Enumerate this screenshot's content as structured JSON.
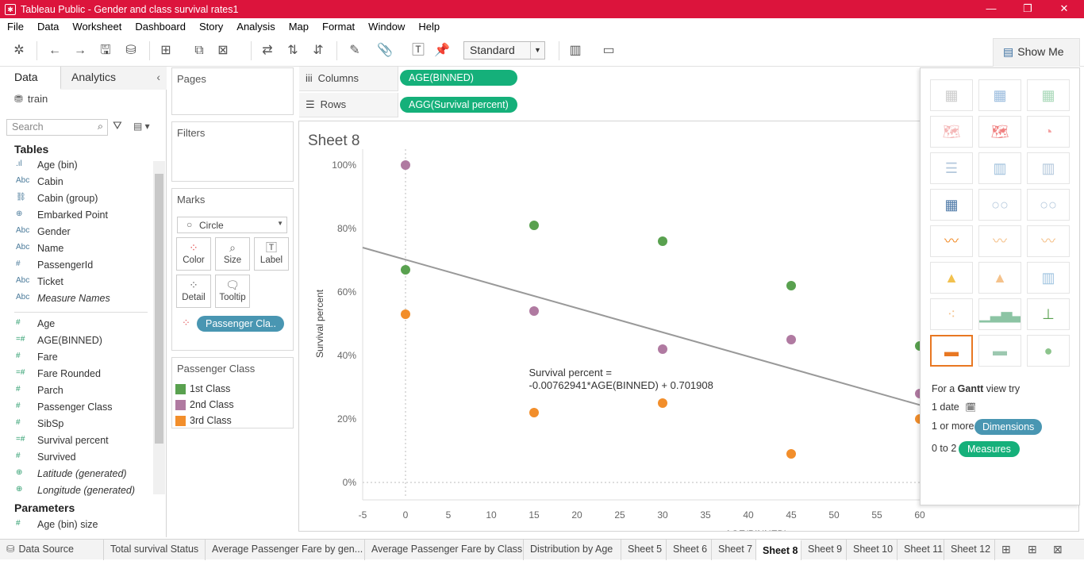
{
  "window": {
    "title": "Tableau Public - Gender and class survival rates1",
    "minimize": "—",
    "restore": "❐",
    "close": "✕"
  },
  "menu": [
    "File",
    "Data",
    "Worksheet",
    "Dashboard",
    "Story",
    "Analysis",
    "Map",
    "Format",
    "Window",
    "Help"
  ],
  "toolbar": {
    "fit_select": "Standard",
    "show_me": "Show Me"
  },
  "left_panel": {
    "tab_data": "Data",
    "tab_analytics": "Analytics",
    "data_source": "train",
    "search_placeholder": "Search",
    "tables_header": "Tables",
    "dimensions": [
      {
        "icon": "bin",
        "glyph": ".ıl",
        "name": "Age (bin)"
      },
      {
        "icon": "string",
        "glyph": "Abc",
        "name": "Cabin"
      },
      {
        "icon": "group",
        "glyph": "⛓",
        "name": "Cabin (group)"
      },
      {
        "icon": "geo",
        "glyph": "⊕",
        "name": "Embarked Point"
      },
      {
        "icon": "string",
        "glyph": "Abc",
        "name": "Gender"
      },
      {
        "icon": "string",
        "glyph": "Abc",
        "name": "Name"
      },
      {
        "icon": "number",
        "glyph": "#",
        "name": "PassengerId"
      },
      {
        "icon": "string",
        "glyph": "Abc",
        "name": "Ticket"
      },
      {
        "icon": "string",
        "glyph": "Abc",
        "name": "Measure Names",
        "italic": true
      }
    ],
    "measures": [
      {
        "icon": "number",
        "glyph": "#",
        "name": "Age"
      },
      {
        "icon": "calc-number",
        "glyph": "=#",
        "name": "AGE(BINNED)"
      },
      {
        "icon": "number",
        "glyph": "#",
        "name": "Fare"
      },
      {
        "icon": "calc-number",
        "glyph": "=#",
        "name": "Fare Rounded"
      },
      {
        "icon": "number",
        "glyph": "#",
        "name": "Parch"
      },
      {
        "icon": "number",
        "glyph": "#",
        "name": "Passenger Class"
      },
      {
        "icon": "number",
        "glyph": "#",
        "name": "SibSp"
      },
      {
        "icon": "calc-number",
        "glyph": "=#",
        "name": "Survival percent"
      },
      {
        "icon": "number",
        "glyph": "#",
        "name": "Survived"
      },
      {
        "icon": "geo",
        "glyph": "⊕",
        "name": "Latitude (generated)",
        "italic": true
      },
      {
        "icon": "geo",
        "glyph": "⊕",
        "name": "Longitude (generated)",
        "italic": true
      }
    ],
    "parameters_header": "Parameters",
    "parameters": [
      {
        "icon": "number",
        "glyph": "#",
        "name": "Age (bin) size"
      }
    ]
  },
  "cards": {
    "pages": "Pages",
    "filters": "Filters",
    "marks": "Marks",
    "mark_type": "Circle",
    "buttons": {
      "color": "Color",
      "size": "Size",
      "label": "Label",
      "detail": "Detail",
      "tooltip": "Tooltip"
    },
    "color_pill": "Passenger Cla..",
    "legend_title": "Passenger Class",
    "legend": [
      {
        "label": "1st Class",
        "color": "#59a14f"
      },
      {
        "label": "2nd Class",
        "color": "#b07aa1"
      },
      {
        "label": "3rd Class",
        "color": "#f28e2b"
      }
    ]
  },
  "shelves": {
    "columns_label": "Columns",
    "columns_pill": "AGE(BINNED)",
    "rows_label": "Rows",
    "rows_pill": "AGG(Survival percent)"
  },
  "sheet": {
    "title": "Sheet 8"
  },
  "chart_data": {
    "type": "scatter",
    "xlabel": "AGE(BINNED)",
    "ylabel": "Survival percent",
    "xlim": [
      -5,
      60
    ],
    "ylim": [
      0,
      100
    ],
    "x_ticks": [
      "-5",
      "0",
      "5",
      "10",
      "15",
      "20",
      "25",
      "30",
      "35",
      "40",
      "45",
      "50",
      "55",
      "60"
    ],
    "y_ticks": [
      "0%",
      "20%",
      "40%",
      "60%",
      "80%",
      "100%"
    ],
    "series": [
      {
        "name": "1st Class",
        "color": "#59a14f",
        "points": [
          [
            0,
            67
          ],
          [
            15,
            81
          ],
          [
            30,
            76
          ],
          [
            45,
            62
          ],
          [
            60,
            43
          ]
        ]
      },
      {
        "name": "2nd Class",
        "color": "#b07aa1",
        "points": [
          [
            0,
            100
          ],
          [
            15,
            54
          ],
          [
            30,
            42
          ],
          [
            45,
            45
          ],
          [
            60,
            28
          ]
        ]
      },
      {
        "name": "3rd Class",
        "color": "#f28e2b",
        "points": [
          [
            0,
            53
          ],
          [
            15,
            22
          ],
          [
            30,
            25
          ],
          [
            45,
            9
          ],
          [
            60,
            20
          ]
        ]
      }
    ],
    "trend_line": {
      "slope": -0.00762941,
      "intercept": 0.701908,
      "color": "#999999"
    },
    "annotation": [
      "Survival percent =",
      "-0.00762941*AGE(BINNED) + 0.701908"
    ]
  },
  "show_me": {
    "hint_prefix": "For a",
    "hint_type": "Gantt",
    "hint_suffix": "view try",
    "req1": "1 date",
    "req2_prefix": "1 or more",
    "req2_pill": "Dimensions",
    "req3_prefix": "0 to 2",
    "req3_pill": "Measures"
  },
  "bottom_tabs": [
    "Data Source",
    "Total survival Status",
    "Average Passenger Fare by gen...",
    "Average Passenger Fare by Class",
    "Distribution by Age",
    "Sheet 5",
    "Sheet 6",
    "Sheet 7",
    "Sheet 8",
    "Sheet 9",
    "Sheet 10",
    "Sheet 11",
    "Sheet 12"
  ],
  "active_tab": "Sheet 8"
}
